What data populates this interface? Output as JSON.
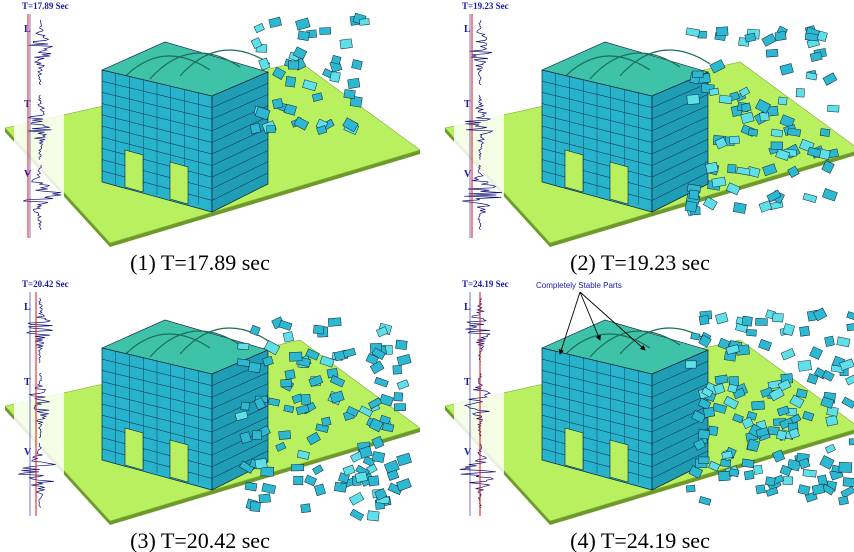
{
  "panels": [
    {
      "caption": "(1) T=17.89 sec",
      "time_label": "T=17.89 Sec",
      "components": [
        "L",
        "T",
        "V"
      ]
    },
    {
      "caption": "(2) T=19.23 sec",
      "time_label": "T=19.23 Sec",
      "components": [
        "L",
        "T",
        "V"
      ]
    },
    {
      "caption": "(3) T=20.42 sec",
      "time_label": "T=20.42 Sec",
      "components": [
        "L",
        "T",
        "V"
      ]
    },
    {
      "caption": "(4) T=24.19 sec",
      "time_label": "T=24.19 Sec",
      "components": [
        "L",
        "T",
        "V"
      ],
      "annotation": "Completely Stable Parts"
    }
  ]
}
